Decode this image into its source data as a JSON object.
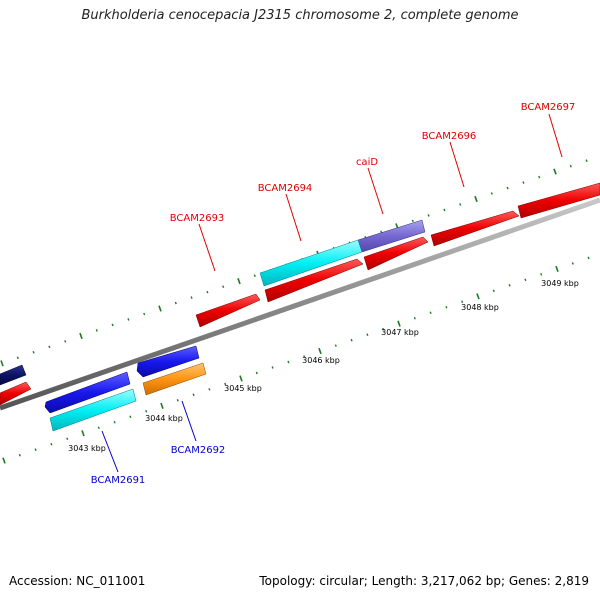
{
  "title": "Burkholderia cenocepacia J2315 chromosome 2, complete genome",
  "footer": {
    "accession": "Accession: NC_011001",
    "summary": "Topology: circular; Length: 3,217,062 bp; Genes: 2,819"
  },
  "colors": {
    "forward_gene_label": "#dd0000",
    "reverse_gene_label": "#0000cc",
    "backbone": "#888888",
    "tick": "#1f7a1f"
  },
  "scale_labels": [
    "3043 kbp",
    "3044 kbp",
    "3045 kbp",
    "3046 kbp",
    "3047 kbp",
    "3048 kbp",
    "3049 kbp"
  ],
  "genes": [
    {
      "name": "BCAM2697",
      "strand": "forward"
    },
    {
      "name": "BCAM2696",
      "strand": "forward"
    },
    {
      "name": "caiD",
      "strand": "forward"
    },
    {
      "name": "BCAM2694",
      "strand": "forward"
    },
    {
      "name": "BCAM2693",
      "strand": "forward"
    },
    {
      "name": "BCAM2692",
      "strand": "reverse"
    },
    {
      "name": "BCAM2691",
      "strand": "reverse"
    }
  ]
}
